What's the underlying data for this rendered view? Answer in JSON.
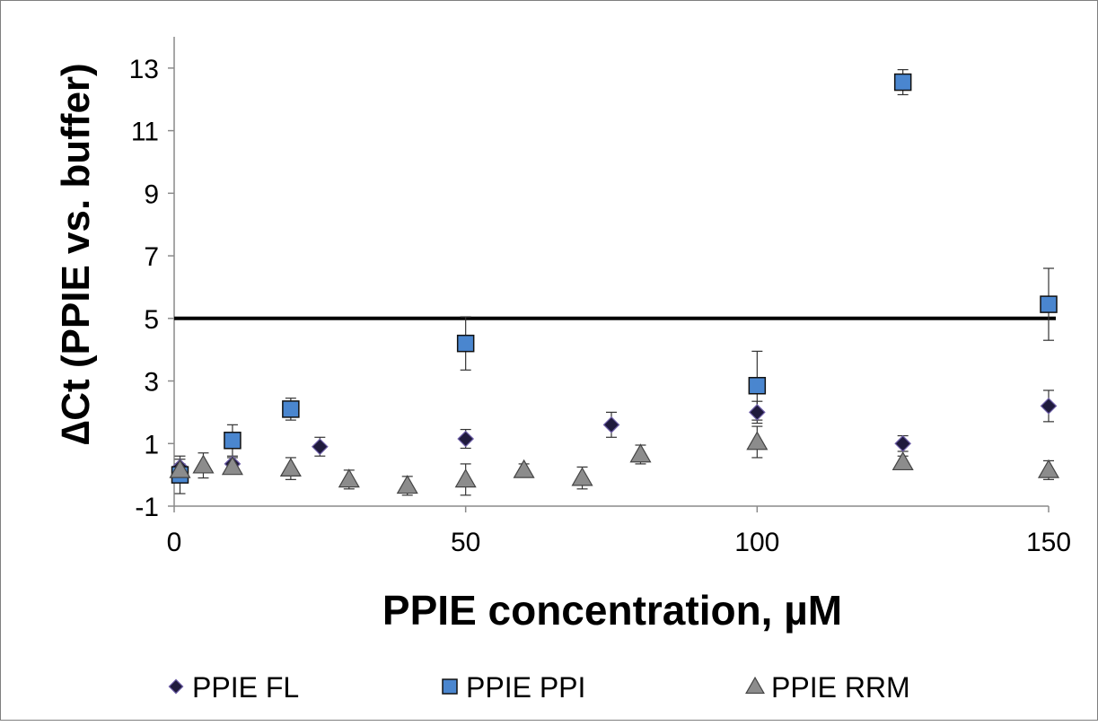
{
  "chart_data": {
    "type": "scatter",
    "xlabel": "PPIE concentration, µM",
    "ylabel": "∆Ct (PPIE vs. buffer)",
    "xlim": [
      0,
      150
    ],
    "ylim": [
      -1,
      14
    ],
    "xticks": [
      "0",
      "50",
      "100",
      "150"
    ],
    "yticks": [
      "-1",
      "1",
      "3",
      "5",
      "7",
      "9",
      "11",
      "13"
    ],
    "grid": false,
    "legend_position": "bottom",
    "threshold_line": {
      "y": 5,
      "color": "#000000"
    },
    "series": [
      {
        "name": "PPIE FL",
        "marker": "diamond",
        "color": "#1f1a3d",
        "points": [
          {
            "x": 1,
            "y": 0.25,
            "err": 0.25
          },
          {
            "x": 10,
            "y": 0.35,
            "err": 0.2
          },
          {
            "x": 25,
            "y": 0.9,
            "err": 0.3
          },
          {
            "x": 50,
            "y": 1.15,
            "err": 0.3
          },
          {
            "x": 75,
            "y": 1.6,
            "err": 0.4
          },
          {
            "x": 100,
            "y": 2.0,
            "err": 0.35
          },
          {
            "x": 125,
            "y": 1.0,
            "err": 0.25
          },
          {
            "x": 150,
            "y": 2.2,
            "err": 0.5
          }
        ]
      },
      {
        "name": "PPIE PPI",
        "marker": "square",
        "color": "#4a86cf",
        "points": [
          {
            "x": 1,
            "y": 0.0,
            "err": 0.6
          },
          {
            "x": 10,
            "y": 1.1,
            "err": 0.5
          },
          {
            "x": 20,
            "y": 2.1,
            "err": 0.35
          },
          {
            "x": 50,
            "y": 4.2,
            "err": 0.85
          },
          {
            "x": 100,
            "y": 2.85,
            "err": 1.1
          },
          {
            "x": 125,
            "y": 12.55,
            "err": 0.4
          },
          {
            "x": 150,
            "y": 5.45,
            "err": 1.15
          }
        ]
      },
      {
        "name": "PPIE RRM",
        "marker": "triangle",
        "color": "#8c8c8c",
        "points": [
          {
            "x": 1,
            "y": 0.15,
            "err": 0.2
          },
          {
            "x": 5,
            "y": 0.3,
            "err": 0.4
          },
          {
            "x": 10,
            "y": 0.25,
            "err": 0.15
          },
          {
            "x": 20,
            "y": 0.2,
            "err": 0.35
          },
          {
            "x": 30,
            "y": -0.15,
            "err": 0.3
          },
          {
            "x": 40,
            "y": -0.35,
            "err": 0.3
          },
          {
            "x": 50,
            "y": -0.15,
            "err": 0.5
          },
          {
            "x": 60,
            "y": 0.15,
            "err": 0.2
          },
          {
            "x": 70,
            "y": -0.1,
            "err": 0.35
          },
          {
            "x": 80,
            "y": 0.65,
            "err": 0.3
          },
          {
            "x": 100,
            "y": 1.05,
            "err": 0.5
          },
          {
            "x": 125,
            "y": 0.4,
            "err": 0.2
          },
          {
            "x": 150,
            "y": 0.15,
            "err": 0.3
          }
        ]
      }
    ]
  }
}
